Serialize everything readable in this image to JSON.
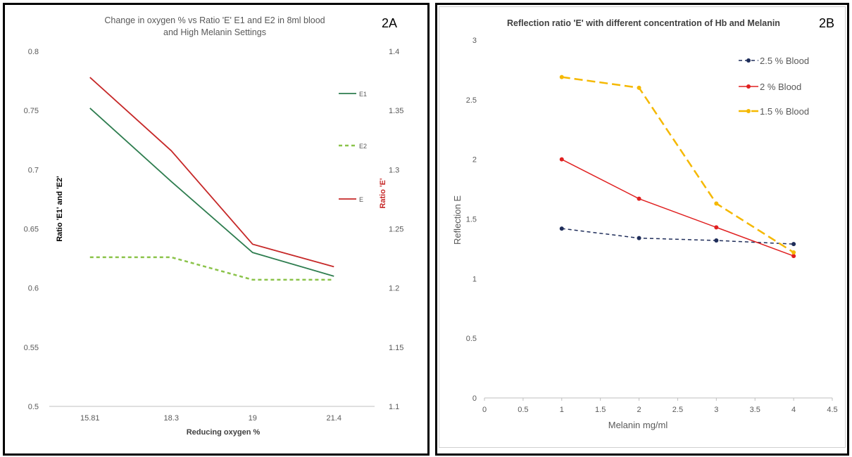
{
  "chart_data": [
    {
      "panel_label": "2A",
      "type": "line",
      "title_line1": "Change in oxygen % vs Ratio 'E' E1 and E2 in 8ml blood",
      "title_line2": "and High Melanin Settings",
      "xlabel": "Reducing oxygen %",
      "ylabel_left": "Ratio 'E1' and 'E2'",
      "ylabel_right": "Ratio 'E'",
      "categories": [
        "15.81",
        "18.3",
        "19",
        "21.4"
      ],
      "y_left_ticks": [
        "0.8",
        "0.75",
        "0.7",
        "0.65",
        "0.6",
        "0.55",
        "0.5"
      ],
      "y_right_ticks": [
        "1.4",
        "1.35",
        "1.3",
        "1.25",
        "1.2",
        "1.15",
        "1.1"
      ],
      "ylim_left": [
        0.5,
        0.8
      ],
      "ylim_right": [
        1.1,
        1.4
      ],
      "legend_position": "right",
      "series": [
        {
          "name": "E1",
          "axis": "left",
          "color": "#2e7d4f",
          "dash": "solid",
          "values": [
            0.752,
            0.69,
            0.63,
            0.61
          ]
        },
        {
          "name": "E2",
          "axis": "left",
          "color": "#8bc34a",
          "dash": "dashed",
          "values": [
            0.626,
            0.626,
            0.607,
            0.607
          ]
        },
        {
          "name": "E",
          "axis": "right",
          "color": "#c62828",
          "dash": "solid",
          "values": [
            1.378,
            1.316,
            1.237,
            1.218
          ]
        }
      ]
    },
    {
      "panel_label": "2B",
      "type": "line",
      "title": "Reflection ratio 'E' with different concentration of Hb and Melanin",
      "xlabel": "Melanin mg/ml",
      "ylabel": "Reflection E",
      "x_ticks": [
        "0",
        "0.5",
        "1",
        "1.5",
        "2",
        "2.5",
        "3",
        "3.5",
        "4",
        "4.5"
      ],
      "y_ticks": [
        "0",
        "0.5",
        "1",
        "1.5",
        "2",
        "2.5",
        "3"
      ],
      "xlim": [
        0,
        4.5
      ],
      "ylim": [
        0,
        3
      ],
      "legend_position": "top-right",
      "series": [
        {
          "name": "2.5 % Blood",
          "color": "#1f2d5a",
          "dash": "dashed",
          "x": [
            1,
            2,
            3,
            4
          ],
          "values": [
            1.42,
            1.34,
            1.32,
            1.29
          ]
        },
        {
          "name": "2 % Blood",
          "color": "#e02020",
          "dash": "solid",
          "x": [
            1,
            2,
            3,
            4
          ],
          "values": [
            2.0,
            1.67,
            1.43,
            1.19
          ]
        },
        {
          "name": "1.5 % Blood",
          "color": "#f5b800",
          "dash": "longdash",
          "x": [
            1,
            2,
            3,
            4
          ],
          "values": [
            2.69,
            2.6,
            1.63,
            1.22
          ]
        }
      ]
    }
  ]
}
